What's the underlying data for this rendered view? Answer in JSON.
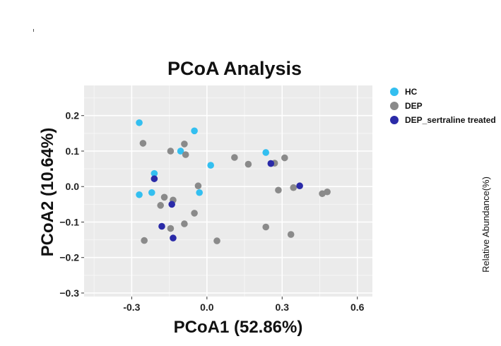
{
  "chart_data": {
    "type": "scatter",
    "title": "PCoA Analysis",
    "xlabel": "PCoA1 (52.86%)",
    "ylabel": "PCoA2 (10.64%)",
    "xlim": [
      -0.49,
      0.66
    ],
    "ylim": [
      -0.31,
      0.285
    ],
    "x_ticks": [
      -0.3,
      0.0,
      0.3,
      0.6
    ],
    "x_tick_labels": [
      "-0.3",
      "0.0",
      "0.3",
      "0.6"
    ],
    "y_ticks": [
      -0.3,
      -0.2,
      -0.1,
      0.0,
      0.1,
      0.2
    ],
    "y_tick_labels": [
      "−0.3",
      "−0.2",
      "−0.1",
      "0.0",
      "0.1",
      "0.2"
    ],
    "grid": true,
    "legend_position": "right",
    "side_label": "Relative Abundance(%)",
    "series": [
      {
        "name": "HC",
        "color": "#33bff0",
        "points": [
          {
            "x": -0.27,
            "y": 0.18
          },
          {
            "x": -0.05,
            "y": 0.157
          },
          {
            "x": -0.105,
            "y": 0.1
          },
          {
            "x": 0.015,
            "y": 0.06
          },
          {
            "x": 0.235,
            "y": 0.096
          },
          {
            "x": -0.21,
            "y": 0.037
          },
          {
            "x": -0.27,
            "y": -0.023
          },
          {
            "x": -0.22,
            "y": -0.017
          },
          {
            "x": -0.03,
            "y": -0.017
          }
        ]
      },
      {
        "name": "DEP",
        "color": "#8a8a8a",
        "points": [
          {
            "x": -0.255,
            "y": 0.122
          },
          {
            "x": -0.145,
            "y": 0.1
          },
          {
            "x": -0.09,
            "y": 0.12
          },
          {
            "x": -0.085,
            "y": 0.09
          },
          {
            "x": 0.11,
            "y": 0.082
          },
          {
            "x": 0.165,
            "y": 0.063
          },
          {
            "x": 0.27,
            "y": 0.066
          },
          {
            "x": 0.31,
            "y": 0.081
          },
          {
            "x": -0.035,
            "y": 0.002
          },
          {
            "x": -0.17,
            "y": -0.03
          },
          {
            "x": -0.135,
            "y": -0.038
          },
          {
            "x": -0.185,
            "y": -0.053
          },
          {
            "x": -0.05,
            "y": -0.075
          },
          {
            "x": -0.09,
            "y": -0.105
          },
          {
            "x": -0.145,
            "y": -0.118
          },
          {
            "x": -0.25,
            "y": -0.152
          },
          {
            "x": 0.04,
            "y": -0.153
          },
          {
            "x": 0.235,
            "y": -0.114
          },
          {
            "x": 0.335,
            "y": -0.135
          },
          {
            "x": 0.285,
            "y": -0.01
          },
          {
            "x": 0.345,
            "y": -0.003
          },
          {
            "x": 0.46,
            "y": -0.02
          },
          {
            "x": 0.48,
            "y": -0.015
          }
        ]
      },
      {
        "name": "DEP_sertraline treated",
        "color": "#2a2aa8",
        "points": [
          {
            "x": -0.21,
            "y": 0.022
          },
          {
            "x": -0.14,
            "y": -0.05
          },
          {
            "x": -0.18,
            "y": -0.112
          },
          {
            "x": -0.135,
            "y": -0.145
          },
          {
            "x": 0.255,
            "y": 0.065
          },
          {
            "x": 0.37,
            "y": 0.002
          }
        ]
      }
    ]
  }
}
